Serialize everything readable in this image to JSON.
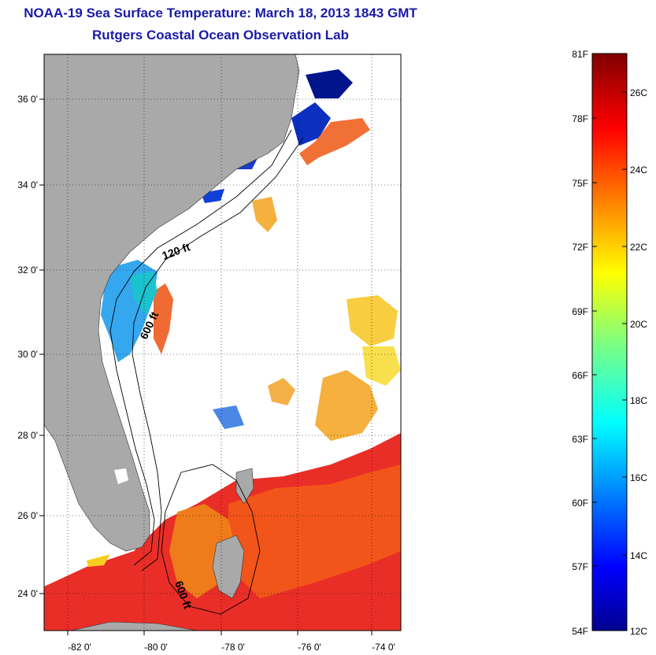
{
  "title": "NOAA-19 Sea Surface Temperature:  March 18, 2013 1843 GMT",
  "subtitle": "Rutgers Coastal Ocean Observation Lab",
  "map": {
    "lat_labels": [
      "36 0'",
      "34 0'",
      "32 0'",
      "30 0'",
      "28 0'",
      "26 0'",
      "24 0'"
    ],
    "lon_labels": [
      "-82 0'",
      "-80 0'",
      "-78 0'",
      "-76 0'",
      "-74 0'"
    ],
    "contour_labels": [
      "120 ft",
      "600 ft",
      "600 ft"
    ],
    "land_color": "#a9a9a9",
    "contour_color": "#000000"
  },
  "colorbar": {
    "fahrenheit_labels": [
      "81F",
      "78F",
      "75F",
      "72F",
      "69F",
      "66F",
      "63F",
      "60F",
      "57F",
      "54F"
    ],
    "celsius_labels": [
      "26C",
      "24C",
      "22C",
      "20C",
      "18C",
      "16C",
      "14C",
      "12C"
    ],
    "colormap": "jet",
    "range_c": [
      12,
      27.2
    ],
    "range_f": [
      54,
      81
    ]
  }
}
